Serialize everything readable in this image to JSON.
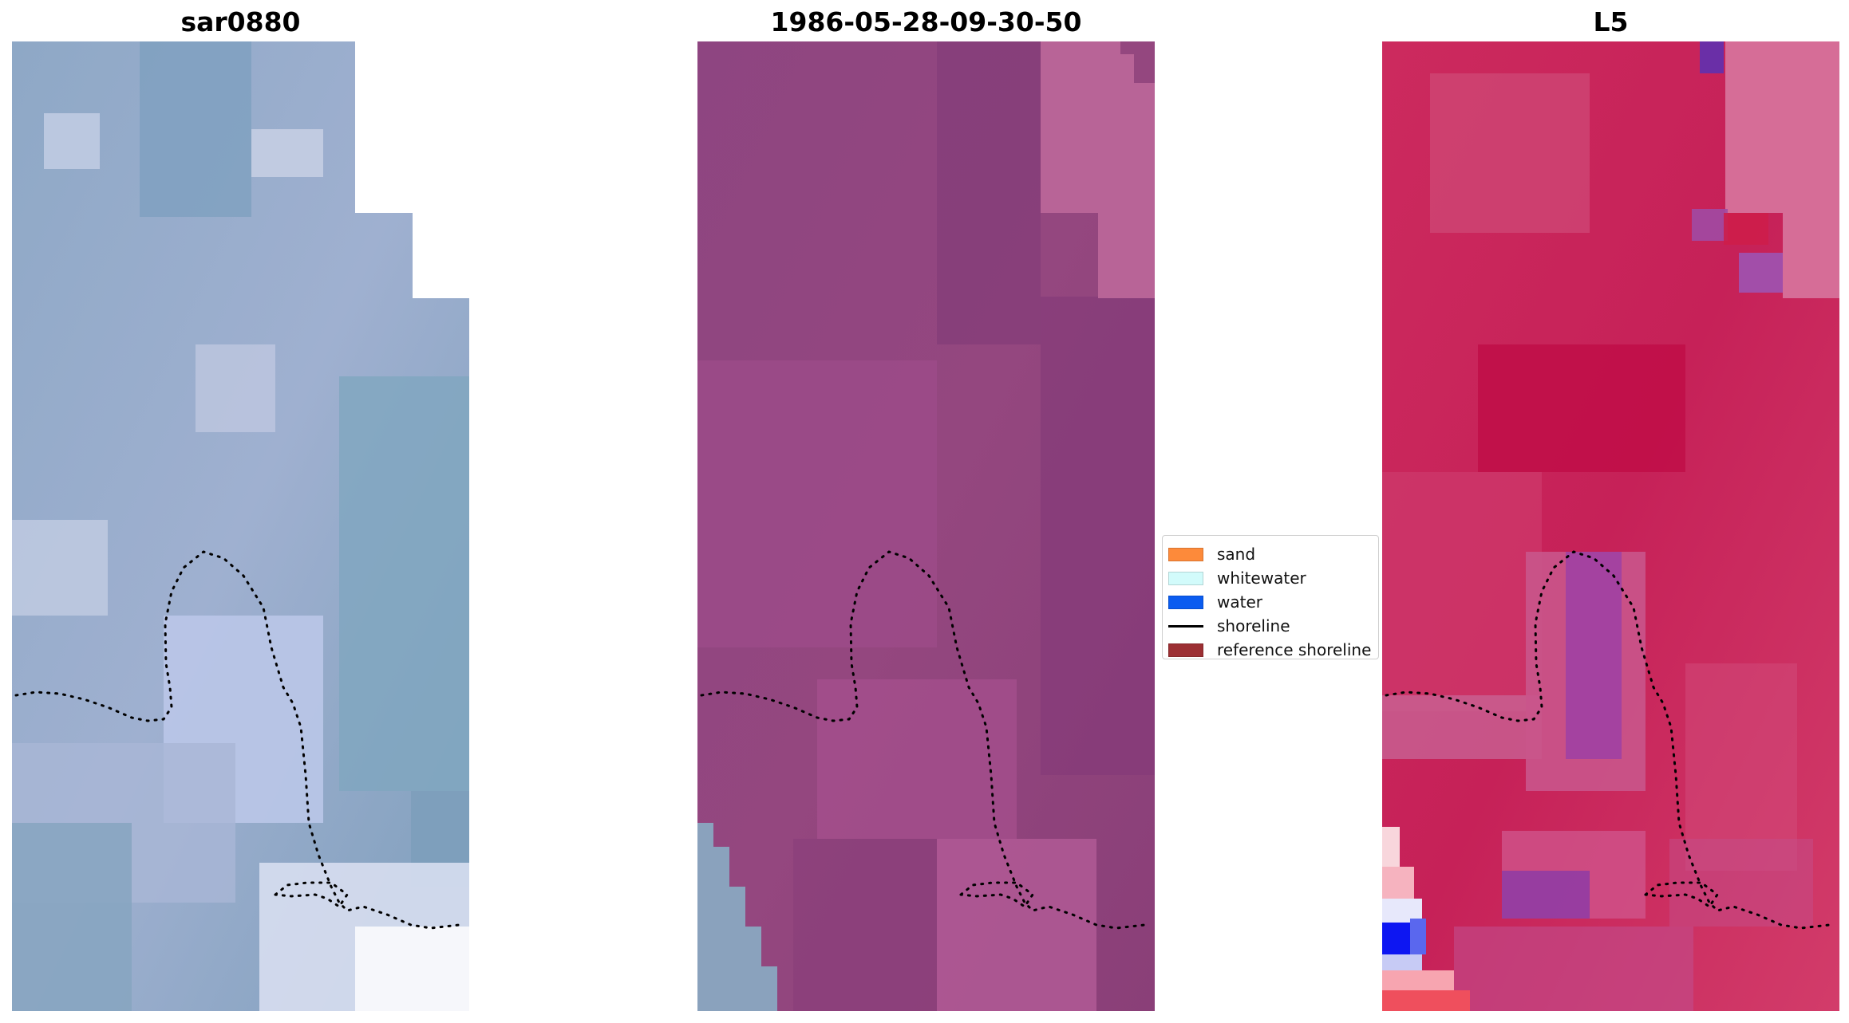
{
  "panels": [
    {
      "title": "sar0880"
    },
    {
      "title": "1986-05-28-09-30-50"
    },
    {
      "title": "L5"
    }
  ],
  "legend": {
    "items": [
      {
        "label": "sand",
        "color": "#fd8a3a",
        "kind": "patch"
      },
      {
        "label": "whitewater",
        "color": "#d2fbfb",
        "kind": "patch"
      },
      {
        "label": "water",
        "color": "#0a5cf0",
        "kind": "patch"
      },
      {
        "label": "shoreline",
        "color": "#000000",
        "kind": "line"
      },
      {
        "label": "reference shoreline",
        "color": "#9c2f33",
        "kind": "patch"
      }
    ]
  }
}
